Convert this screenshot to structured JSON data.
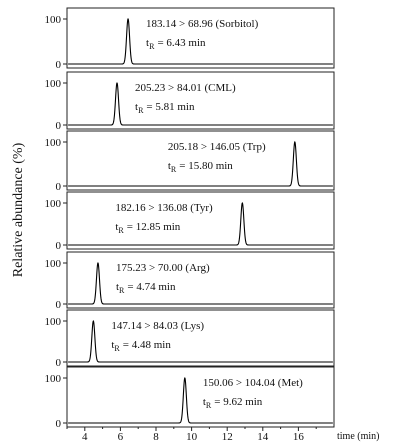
{
  "chart_data": {
    "type": "line",
    "ylabel": "Relative abundance (%)",
    "xlabel": "time (min)",
    "xlim": [
      3,
      18
    ],
    "ylim": [
      0,
      100
    ],
    "xticks": [
      4,
      6,
      8,
      10,
      12,
      14,
      16
    ],
    "yticks": [
      0,
      100
    ],
    "panels": [
      {
        "transition": "183.14 > 68.96 (Sorbitol)",
        "tr_label": "t",
        "tr_sub": "R",
        "tr_value": "= 6.43 min",
        "peak_x": 6.43,
        "peak_y": 100
      },
      {
        "transition": "205.23 > 84.01 (CML)",
        "tr_label": "t",
        "tr_sub": "R",
        "tr_value": "= 5.81 min",
        "peak_x": 5.81,
        "peak_y": 100
      },
      {
        "transition": "205.18 > 146.05 (Trp)",
        "tr_label": "t",
        "tr_sub": "R",
        "tr_value": "= 15.80 min",
        "peak_x": 15.8,
        "peak_y": 100
      },
      {
        "transition": "182.16 > 136.08 (Tyr)",
        "tr_label": "t",
        "tr_sub": "R",
        "tr_value": "= 12.85 min",
        "peak_x": 12.85,
        "peak_y": 100
      },
      {
        "transition": "175.23 > 70.00 (Arg)",
        "tr_label": "t",
        "tr_sub": "R",
        "tr_value": "= 4.74 min",
        "peak_x": 4.74,
        "peak_y": 100
      },
      {
        "transition": "147.14 > 84.03 (Lys)",
        "tr_label": "t",
        "tr_sub": "R",
        "tr_value": "= 4.48 min",
        "peak_x": 4.48,
        "peak_y": 100
      },
      {
        "transition": "150.06 > 104.04 (Met)",
        "tr_label": "t",
        "tr_sub": "R",
        "tr_value": "= 9.62 min",
        "peak_x": 9.62,
        "peak_y": 100
      }
    ]
  }
}
